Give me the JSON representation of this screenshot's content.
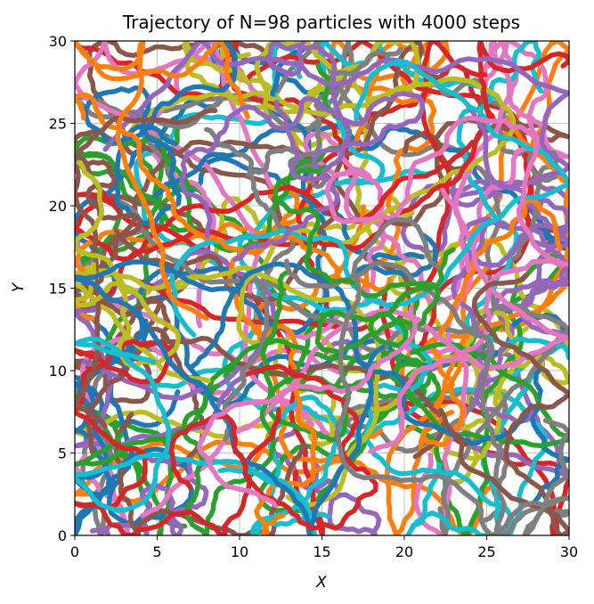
{
  "chart_data": {
    "type": "line",
    "title": "Trajectory of N=98 particles with 4000 steps",
    "xlabel": "X",
    "ylabel": "Y",
    "xlim": [
      0,
      30
    ],
    "ylim": [
      0,
      30
    ],
    "xticks": [
      0,
      5,
      10,
      15,
      20,
      25,
      30
    ],
    "yticks": [
      0,
      5,
      10,
      15,
      20,
      25,
      30
    ],
    "grid": true,
    "num_particles": 98,
    "steps": 4000,
    "palette": [
      "#1f77b4",
      "#ff7f0e",
      "#2ca02c",
      "#d62728",
      "#9467bd",
      "#8c564b",
      "#e377c2",
      "#7f7f7f",
      "#bcbd22",
      "#17becf"
    ]
  }
}
